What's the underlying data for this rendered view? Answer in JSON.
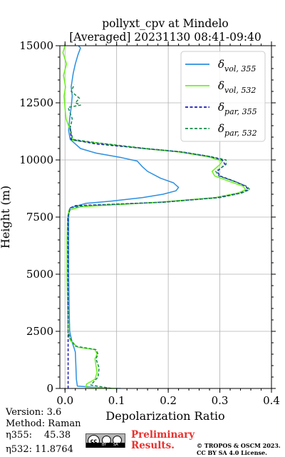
{
  "chart_data": {
    "type": "line",
    "title_line1": "pollyxt_cpv at Mindelo",
    "title_line2": "[Averaged] 20231130 08:41-09:40",
    "xlabel": "Depolarization Ratio",
    "ylabel": "Height (m)",
    "xlim": [
      -0.01,
      0.4
    ],
    "ylim": [
      0,
      15000
    ],
    "xticks": [
      "0.0",
      "0.1",
      "0.2",
      "0.3",
      "0.4"
    ],
    "yticks": [
      "0",
      "2500",
      "5000",
      "7500",
      "10000",
      "12500",
      "15000"
    ],
    "grid": true,
    "legend_position": "top-right",
    "series": [
      {
        "name_main": "δ",
        "name_sub": "vol, 355",
        "color": "#2b8fe0",
        "dash": "solid",
        "points": [
          [
            0.108,
            0
          ],
          [
            0.095,
            0
          ],
          [
            0.024,
            100
          ],
          [
            0.022,
            400
          ],
          [
            0.021,
            1000
          ],
          [
            0.02,
            1600
          ],
          [
            0.017,
            1800
          ],
          [
            0.014,
            2000
          ],
          [
            0.011,
            2300
          ],
          [
            0.009,
            2500
          ],
          [
            0.008,
            3500
          ],
          [
            0.007,
            5000
          ],
          [
            0.007,
            6500
          ],
          [
            0.007,
            7500
          ],
          [
            0.008,
            7800
          ],
          [
            0.01,
            7900
          ],
          [
            0.04,
            8100
          ],
          [
            0.09,
            8200
          ],
          [
            0.15,
            8350
          ],
          [
            0.19,
            8500
          ],
          [
            0.215,
            8650
          ],
          [
            0.22,
            8800
          ],
          [
            0.21,
            9000
          ],
          [
            0.185,
            9200
          ],
          [
            0.16,
            9500
          ],
          [
            0.15,
            9700
          ],
          [
            0.14,
            9950
          ],
          [
            0.11,
            10100
          ],
          [
            0.06,
            10300
          ],
          [
            0.03,
            10500
          ],
          [
            0.02,
            10700
          ],
          [
            0.01,
            10900
          ],
          [
            0.007,
            11300
          ],
          [
            0.009,
            11800
          ],
          [
            0.012,
            12300
          ],
          [
            0.014,
            12800
          ],
          [
            0.012,
            13200
          ],
          [
            0.016,
            13800
          ],
          [
            0.02,
            14200
          ],
          [
            0.025,
            14600
          ],
          [
            0.03,
            14900
          ],
          [
            0.026,
            15000
          ]
        ]
      },
      {
        "name_main": "δ",
        "name_sub": "vol, 532",
        "color": "#6cf21e",
        "dash": "solid",
        "points": [
          [
            0.1,
            0
          ],
          [
            0.04,
            50
          ],
          [
            0.042,
            200
          ],
          [
            0.058,
            400
          ],
          [
            0.062,
            700
          ],
          [
            0.06,
            1000
          ],
          [
            0.058,
            1300
          ],
          [
            0.062,
            1500
          ],
          [
            0.058,
            1700
          ],
          [
            0.025,
            1800
          ],
          [
            0.01,
            2100
          ],
          [
            0.006,
            2400
          ],
          [
            0.005,
            3500
          ],
          [
            0.004,
            5000
          ],
          [
            0.004,
            6500
          ],
          [
            0.005,
            7500
          ],
          [
            0.008,
            7800
          ],
          [
            0.03,
            7950
          ],
          [
            0.18,
            8150
          ],
          [
            0.29,
            8350
          ],
          [
            0.335,
            8550
          ],
          [
            0.35,
            8700
          ],
          [
            0.345,
            8850
          ],
          [
            0.32,
            9050
          ],
          [
            0.29,
            9300
          ],
          [
            0.285,
            9500
          ],
          [
            0.3,
            9800
          ],
          [
            0.305,
            9950
          ],
          [
            0.275,
            10150
          ],
          [
            0.22,
            10350
          ],
          [
            0.15,
            10500
          ],
          [
            0.06,
            10750
          ],
          [
            0.015,
            10850
          ],
          [
            0.01,
            11300
          ],
          [
            0.002,
            11800
          ],
          [
            0.0,
            12300
          ],
          [
            -0.002,
            12800
          ],
          [
            0.001,
            13200
          ],
          [
            -0.003,
            13700
          ],
          [
            0.003,
            14200
          ],
          [
            -0.004,
            14700
          ],
          [
            0.0,
            15000
          ]
        ]
      },
      {
        "name_main": "δ",
        "name_sub": "par, 355",
        "color": "#1a1ab8",
        "dash": "dashed",
        "points": [
          [
            0.006,
            0
          ],
          [
            0.006,
            5000
          ],
          [
            0.006,
            7500
          ],
          [
            0.01,
            7900
          ],
          [
            0.02,
            8000
          ],
          [
            0.08,
            8050
          ],
          [
            0.19,
            8150
          ],
          [
            0.295,
            8350
          ],
          [
            0.34,
            8550
          ],
          [
            0.355,
            8700
          ],
          [
            0.35,
            8850
          ],
          [
            0.33,
            9050
          ],
          [
            0.3,
            9300
          ],
          [
            0.295,
            9500
          ],
          [
            0.31,
            9800
          ],
          [
            0.305,
            10000
          ],
          [
            0.28,
            10150
          ],
          [
            0.225,
            10350
          ],
          [
            0.155,
            10500
          ],
          [
            0.06,
            10700
          ],
          [
            0.012,
            10900
          ],
          [
            0.01,
            11500
          ]
        ]
      },
      {
        "name_main": "δ",
        "name_sub": "par, 532",
        "color": "#168c4a",
        "dash": "dashed",
        "points": [
          [
            0.09,
            0
          ],
          [
            0.05,
            150
          ],
          [
            0.064,
            500
          ],
          [
            0.066,
            900
          ],
          [
            0.06,
            1300
          ],
          [
            0.064,
            1500
          ],
          [
            0.06,
            1700
          ],
          [
            0.02,
            1850
          ],
          [
            0.01,
            2200
          ],
          [
            0.006,
            2500
          ],
          [
            0.005,
            5000
          ],
          [
            0.005,
            7500
          ],
          [
            0.01,
            7900
          ],
          [
            0.04,
            8000
          ],
          [
            0.19,
            8150
          ],
          [
            0.3,
            8350
          ],
          [
            0.342,
            8550
          ],
          [
            0.358,
            8700
          ],
          [
            0.352,
            8850
          ],
          [
            0.33,
            9050
          ],
          [
            0.298,
            9300
          ],
          [
            0.292,
            9500
          ],
          [
            0.312,
            9800
          ],
          [
            0.312,
            10000
          ],
          [
            0.282,
            10150
          ],
          [
            0.228,
            10350
          ],
          [
            0.158,
            10500
          ],
          [
            0.062,
            10750
          ],
          [
            0.015,
            10900
          ],
          [
            0.01,
            11400
          ],
          [
            0.014,
            11800
          ],
          [
            0.006,
            12300
          ],
          [
            0.03,
            12400
          ],
          [
            0.02,
            12500
          ],
          [
            0.028,
            12700
          ],
          [
            0.012,
            13000
          ],
          [
            0.018,
            13300
          ]
        ]
      }
    ]
  },
  "info": {
    "version": "Version: 3.6",
    "method": "Method: Raman",
    "eta355_label": "η355:",
    "eta355_value": "45.38",
    "eta532_label": "η532:",
    "eta532_value": "11.8764"
  },
  "footer": {
    "prelim_line1": "Preliminary",
    "prelim_line2": "Results.",
    "copyright_line1": "© TROPOS & OSCM 2023.",
    "copyright_line2": "CC BY SA 4.0 License.",
    "cc_text": "cc",
    "by_text": "BY",
    "sa_text": "SA"
  }
}
